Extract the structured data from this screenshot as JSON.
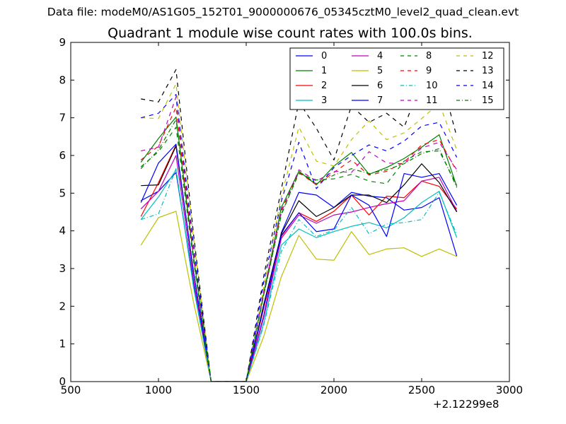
{
  "suptitle": "Data file: modeM0/AS1G05_152T01_9000000676_05345cztM0_level2_quad_clean.evt",
  "chart_data": {
    "type": "line",
    "title": "Quadrant 1 module wise count rates with 100.0s bins.",
    "xlabel": "",
    "ylabel": "",
    "x_offset_label": "+2.12299e8",
    "xlim": [
      500,
      3000
    ],
    "ylim": [
      0,
      9
    ],
    "xticks": [
      500,
      1000,
      1500,
      2000,
      2500,
      3000
    ],
    "yticks": [
      0,
      1,
      2,
      3,
      4,
      5,
      6,
      7,
      8,
      9
    ],
    "grid": false,
    "legend_placement": "top-right",
    "legend_columns": 4,
    "x": [
      900,
      1000,
      1100,
      1200,
      1300,
      1400,
      1500,
      1600,
      1700,
      1800,
      1900,
      2000,
      2100,
      2200,
      2300,
      2400,
      2500,
      2600,
      2700
    ],
    "series": [
      {
        "name": "0",
        "color": "#0000ff",
        "dash": "solid",
        "values": [
          4.8,
          5.05,
          5.55,
          2.6,
          0,
          0,
          0,
          1.75,
          3.95,
          5.02,
          4.95,
          4.62,
          5.02,
          4.92,
          4.88,
          4.55,
          4.62,
          4.88,
          3.33
        ]
      },
      {
        "name": "1",
        "color": "#008000",
        "dash": "solid",
        "values": [
          5.82,
          6.45,
          7.02,
          3.3,
          0,
          0,
          0,
          2.35,
          4.62,
          5.58,
          5.22,
          5.72,
          6.08,
          5.5,
          5.68,
          5.92,
          6.22,
          6.55,
          5.18
        ]
      },
      {
        "name": "2",
        "color": "#ff0000",
        "dash": "solid",
        "values": [
          4.38,
          5.28,
          6.28,
          2.9,
          0,
          0,
          0,
          1.95,
          3.85,
          4.48,
          4.25,
          4.52,
          4.95,
          4.42,
          4.92,
          4.88,
          5.32,
          5.18,
          4.58
        ]
      },
      {
        "name": "3",
        "color": "#00bfbf",
        "dash": "solid",
        "values": [
          4.3,
          4.9,
          5.62,
          2.5,
          0,
          0,
          0,
          1.55,
          3.62,
          4.05,
          3.82,
          3.98,
          4.12,
          4.22,
          4.08,
          4.35,
          4.75,
          5.05,
          3.82
        ]
      },
      {
        "name": "4",
        "color": "#bf00bf",
        "dash": "solid",
        "values": [
          4.58,
          5.05,
          6.0,
          2.7,
          0,
          0,
          0,
          1.7,
          3.8,
          4.42,
          4.2,
          4.42,
          4.5,
          4.62,
          4.72,
          4.8,
          5.32,
          5.42,
          4.52
        ]
      },
      {
        "name": "5",
        "color": "#bfbf00",
        "dash": "solid",
        "values": [
          3.62,
          4.35,
          4.52,
          2.1,
          0,
          0,
          0,
          1.2,
          2.78,
          3.88,
          3.25,
          3.22,
          3.98,
          3.37,
          3.52,
          3.55,
          3.32,
          3.52,
          3.32
        ]
      },
      {
        "name": "6",
        "color": "#000000",
        "dash": "solid",
        "values": [
          5.2,
          5.22,
          6.25,
          2.9,
          0,
          0,
          0,
          2.05,
          3.92,
          4.8,
          4.38,
          4.62,
          4.95,
          4.95,
          4.75,
          5.22,
          5.78,
          5.28,
          4.5
        ]
      },
      {
        "name": "7",
        "color": "#0000ff",
        "dash": "solid",
        "values": [
          4.75,
          5.8,
          6.3,
          2.9,
          0,
          0,
          0,
          2.0,
          3.88,
          4.48,
          3.98,
          4.05,
          4.95,
          4.68,
          3.85,
          5.52,
          5.42,
          5.52,
          4.68
        ]
      },
      {
        "name": "8",
        "color": "#008000",
        "dash": "dashed",
        "values": [
          5.7,
          6.1,
          6.75,
          3.2,
          0,
          0,
          0,
          2.3,
          4.45,
          5.52,
          5.35,
          5.38,
          5.5,
          5.32,
          5.25,
          5.85,
          6.1,
          6.12,
          5.22
        ]
      },
      {
        "name": "9",
        "color": "#ff0000",
        "dash": "dashed",
        "values": [
          5.88,
          6.25,
          7.28,
          3.3,
          0,
          0,
          0,
          2.35,
          4.55,
          5.55,
          5.22,
          5.55,
          5.88,
          5.48,
          5.58,
          5.82,
          6.28,
          6.42,
          5.58
        ]
      },
      {
        "name": "10",
        "color": "#00bfbf",
        "dash": "dashdot",
        "values": [
          4.3,
          4.45,
          5.65,
          2.5,
          0,
          0,
          0,
          1.5,
          3.45,
          4.3,
          3.85,
          4.02,
          4.62,
          3.92,
          4.18,
          4.22,
          4.3,
          5.02,
          3.9
        ]
      },
      {
        "name": "11",
        "color": "#bf00bf",
        "dash": "dashed",
        "values": [
          6.12,
          6.22,
          7.55,
          3.4,
          0,
          0,
          0,
          2.4,
          4.5,
          5.62,
          5.32,
          5.58,
          5.55,
          6.1,
          5.8,
          5.78,
          6.2,
          6.35,
          5.62
        ]
      },
      {
        "name": "12",
        "color": "#bfbf00",
        "dash": "dashed",
        "values": [
          7.0,
          6.98,
          7.9,
          3.8,
          0,
          0,
          0,
          2.5,
          4.9,
          6.75,
          5.85,
          5.72,
          6.42,
          6.92,
          6.42,
          6.6,
          6.98,
          7.38,
          6.15
        ]
      },
      {
        "name": "13",
        "color": "#000000",
        "dash": "dashed",
        "values": [
          7.5,
          7.42,
          8.28,
          3.9,
          0,
          0,
          0,
          2.8,
          5.1,
          7.42,
          6.72,
          5.88,
          7.32,
          6.88,
          7.12,
          6.75,
          7.98,
          8.25,
          6.5
        ]
      },
      {
        "name": "14",
        "color": "#0000ff",
        "dash": "dashed",
        "values": [
          7.0,
          7.12,
          7.62,
          3.6,
          0,
          0,
          0,
          2.65,
          4.78,
          6.35,
          5.12,
          5.68,
          6.0,
          6.28,
          6.12,
          6.38,
          6.78,
          6.88,
          5.95
        ]
      },
      {
        "name": "15",
        "color": "#008000",
        "dash": "dashdot",
        "values": [
          5.65,
          6.15,
          6.95,
          3.3,
          0,
          0,
          0,
          2.3,
          4.42,
          5.58,
          5.25,
          5.48,
          5.65,
          5.52,
          5.62,
          5.78,
          6.05,
          6.18,
          5.15
        ]
      }
    ]
  }
}
